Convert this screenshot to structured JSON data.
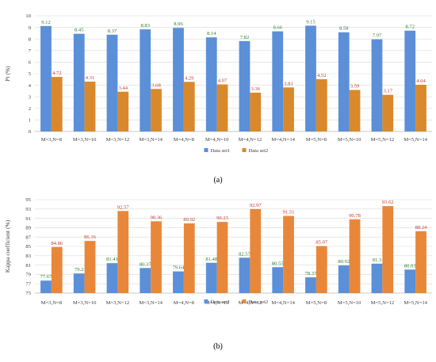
{
  "chart_data": [
    {
      "type": "bar",
      "ylabel": "Pt (%)",
      "ylim": [
        0,
        10
      ],
      "yticks": [
        "0",
        "1",
        "2",
        "3",
        "4",
        "5",
        "6",
        "7",
        "8",
        "9",
        "10"
      ],
      "grid": true,
      "legend_position": "bottom",
      "categories": [
        "M=3,N=8",
        "M=3,N=10",
        "M=3,N=12",
        "M=3,N=14",
        "M=4,N=8",
        "M=4,N=10",
        "M=4,N=12",
        "M=4,N=14",
        "M=5,N=8",
        "M=5,N=10",
        "M=5,N=12",
        "M=5,N=14"
      ],
      "series": [
        {
          "name": "Data set1",
          "color": "#5b8fd8",
          "label_color": "#2e7d32",
          "values": [
            9.12,
            8.45,
            8.37,
            8.83,
            8.96,
            8.14,
            7.82,
            8.66,
            9.15,
            8.58,
            7.97,
            8.72
          ],
          "labels": [
            "9.12",
            "8.45",
            "8.37",
            "8.83",
            "8.96",
            "8.14",
            "7.82",
            "8.66",
            "9.15",
            "8.58",
            "7.97",
            "8.72"
          ]
        },
        {
          "name": "Data set2",
          "color": "#d9892b",
          "label_color": "#c0392b",
          "values": [
            4.72,
            4.31,
            3.44,
            3.68,
            4.29,
            4.07,
            3.36,
            3.81,
            4.52,
            3.59,
            3.17,
            4.04
          ],
          "labels": [
            "4.72",
            "4.31",
            "3.44",
            "3.68",
            "4.29",
            "4.07",
            "3.36",
            "3.81",
            "4.52",
            "3.59",
            "3.17",
            "4.04"
          ]
        }
      ],
      "panel_label": "(a)"
    },
    {
      "type": "bar",
      "ylabel": "Kappa coefficient (%)",
      "ylim": [
        75,
        95
      ],
      "yticks": [
        "75",
        "77",
        "79",
        "81",
        "83",
        "85",
        "87",
        "89",
        "91",
        "93",
        "95"
      ],
      "grid": true,
      "legend_position": "bottom",
      "categories": [
        "M=3,N=8",
        "M=3,N=10",
        "M=3,N=12",
        "M=3,N=14",
        "M=4,N=8",
        "M=4,N=10",
        "M=4,N=12",
        "M=4,N=14",
        "M=5,N=8",
        "M=5,N=10",
        "M=5,N=12",
        "M=5,N=14"
      ],
      "series": [
        {
          "name": "Data set1",
          "color": "#5b8fd8",
          "label_color": "#2e7d32",
          "values": [
            77.67,
            79.2,
            81.41,
            80.37,
            79.64,
            81.48,
            82.57,
            80.55,
            78.37,
            80.92,
            81.3,
            80.03
          ],
          "labels": [
            "77.67",
            "79.2",
            "81.41",
            "80.37",
            "79.64",
            "81.48",
            "82.57",
            "80.55",
            "78.37",
            "80.92",
            "81.3",
            "80.03"
          ]
        },
        {
          "name": "Data set2",
          "color": "#e8873a",
          "label_color": "#c0392b",
          "values": [
            84.86,
            86.16,
            92.57,
            90.36,
            89.92,
            90.23,
            92.97,
            91.51,
            85.07,
            90.78,
            93.62,
            88.24
          ],
          "labels": [
            "84.86",
            "86.16",
            "92.57",
            "90.36",
            "89.92",
            "90.23",
            "92.97",
            "91.51",
            "85.07",
            "90.78",
            "93.62",
            "88.24"
          ]
        }
      ],
      "panel_label": "(b)"
    }
  ]
}
